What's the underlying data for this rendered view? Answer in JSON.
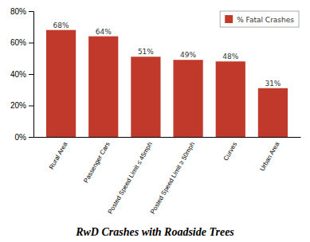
{
  "chart_data": {
    "type": "bar",
    "title": "RwD Crashes with Roadside Trees",
    "categories": [
      "Rural Area",
      "Passenger Cars",
      "Posted Speed Limit ≤ 45mph",
      "Posted Speed Limit ≥ 50mph",
      "Curves",
      "Urban Area"
    ],
    "series": [
      {
        "name": "% Fatal Crashes",
        "color": "#C0392B",
        "values": [
          68,
          64,
          51,
          49,
          48,
          31
        ],
        "value_labels": [
          "68%",
          "64%",
          "51%",
          "49%",
          "48%",
          "31%"
        ]
      }
    ],
    "ylim": [
      0,
      80
    ],
    "yticks": [
      {
        "value": 0,
        "label": "0%"
      },
      {
        "value": 20,
        "label": "20%"
      },
      {
        "value": 40,
        "label": "40%"
      },
      {
        "value": 60,
        "label": "60%"
      },
      {
        "value": 80,
        "label": "80%"
      }
    ],
    "grid": false,
    "legend": "upper right",
    "data_labels": true
  }
}
